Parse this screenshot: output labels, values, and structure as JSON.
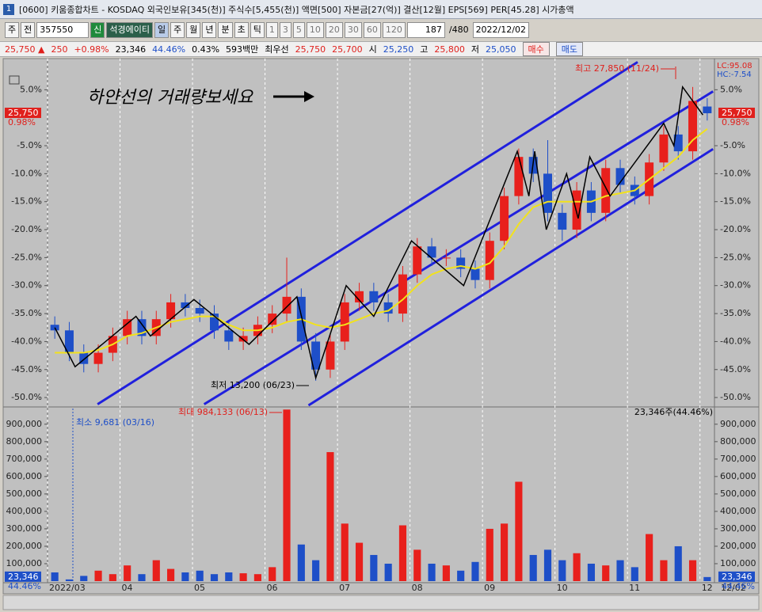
{
  "ui": {
    "title": "[0600] 키움종합차트 - KOSDAQ 외국인보유[345(천)] 주식수[5,455(천)] 액면[500] 자본금[27(억)] 결산[12월] EPS[569] PER[45.28] 시가총액",
    "toolbar": [
      "주",
      "전",
      "357550",
      "신",
      "석경에이티",
      "일",
      "주",
      "월",
      "년",
      "분",
      "초",
      "틱",
      "1",
      "3",
      "5",
      "10",
      "20",
      "30",
      "60",
      "120",
      "187",
      "/480",
      "2022/12/02"
    ],
    "info": [
      "25,750 ▲",
      "250",
      "+0.98%",
      "23,346",
      "44.46%",
      "0.43%",
      "593백만",
      "최우선",
      "25,750",
      "25,700",
      "시",
      "25,250",
      "고",
      "25,800",
      "저",
      "25,050",
      "매수",
      "매도"
    ]
  },
  "chart_data": {
    "type": "candlestick",
    "categories": [
      "2022/03",
      null,
      null,
      null,
      null,
      "04",
      null,
      null,
      null,
      null,
      "05",
      null,
      null,
      null,
      null,
      "06",
      null,
      null,
      null,
      null,
      "07",
      null,
      null,
      null,
      null,
      "08",
      null,
      null,
      null,
      null,
      "09",
      null,
      null,
      null,
      null,
      "10",
      null,
      null,
      null,
      null,
      "11",
      null,
      null,
      null,
      null,
      "12"
    ],
    "open": [
      -37,
      -38,
      -42,
      -44,
      -42,
      -39,
      -36,
      -39,
      -36,
      -33,
      -34,
      -35,
      -38,
      -40,
      -39,
      -37,
      -35,
      -32,
      -40,
      -45,
      -40,
      -33,
      -31,
      -33,
      -35,
      -28,
      -23,
      -25,
      -25,
      -27,
      -29,
      -22,
      -14,
      -7,
      -10,
      -17,
      -20,
      -13,
      -17,
      -9,
      -12,
      -14,
      -8,
      -3,
      -6,
      2
    ],
    "high": [
      -35.5,
      -36.5,
      -40.5,
      -40.5,
      -37.5,
      -34.5,
      -34.5,
      -34.5,
      -31.5,
      -31.5,
      -32.5,
      -33.5,
      -36.5,
      -37.5,
      -35.5,
      -33.5,
      -25,
      -30.5,
      -38.5,
      -38.5,
      -31.5,
      -29.5,
      -29.5,
      -31.5,
      -26.5,
      -21.5,
      -21.5,
      -23.5,
      -23.5,
      -25.5,
      -20.5,
      -12.5,
      -5.5,
      -5.5,
      -4,
      -15.5,
      -11.5,
      -11.5,
      -7.5,
      -7.5,
      -10.5,
      -6.5,
      -1.5,
      -1.5,
      5.5,
      3.5
    ],
    "low": [
      -39.5,
      -43.5,
      -45.5,
      -45.5,
      -43.5,
      -40.5,
      -40.5,
      -40.5,
      -37.5,
      -35.5,
      -36.5,
      -39.5,
      -41.5,
      -41.5,
      -40.5,
      -38.5,
      -36.5,
      -41.5,
      -47,
      -46.5,
      -41.5,
      -34.5,
      -34.5,
      -36.5,
      -36.5,
      -29.5,
      -26.5,
      -26.5,
      -28.5,
      -30.5,
      -30.5,
      -23.5,
      -15.5,
      -11.5,
      -18.5,
      -22,
      -21.5,
      -18.5,
      -18.5,
      -13.5,
      -15.5,
      -15.5,
      -9.5,
      -7.5,
      -7.5,
      -0.5
    ],
    "close": [
      -38,
      -42,
      -44,
      -42,
      -39,
      -36,
      -39,
      -36,
      -33,
      -34,
      -35,
      -38,
      -40,
      -39,
      -37,
      -35,
      -32,
      -40,
      -45,
      -40,
      -33,
      -31,
      -33,
      -35,
      -28,
      -23,
      -25,
      -25,
      -27,
      -29,
      -22,
      -14,
      -7,
      -10,
      -17,
      -20,
      -13,
      -17,
      -9,
      -12,
      -14,
      -8,
      -3,
      -6,
      3,
      0.8
    ],
    "up_color": "#e8201c",
    "down_color": "#1e4fc8",
    "ylim": [
      -51.4,
      10
    ],
    "yticks": [
      {
        "value": 5,
        "label": "5.0%"
      },
      {
        "value": -5,
        "label": "-5.0%"
      },
      {
        "value": -10,
        "label": "-10.0%"
      },
      {
        "value": -15,
        "label": "-15.0%"
      },
      {
        "value": -20,
        "label": "-20.0%"
      },
      {
        "value": -25,
        "label": "-25.0%"
      },
      {
        "value": -30,
        "label": "-30.0%"
      },
      {
        "value": -35,
        "label": "-35.0%"
      },
      {
        "value": -40,
        "label": "-40.0%"
      },
      {
        "value": -45,
        "label": "-45.0%"
      },
      {
        "value": -50,
        "label": "-50.0%"
      }
    ],
    "grid": true,
    "ma": {
      "color": "#f2e21a",
      "values": [
        -42,
        -42,
        -42,
        -41.5,
        -40.5,
        -39,
        -38.5,
        -37.5,
        -36.5,
        -36,
        -35.5,
        -35.5,
        -37,
        -38,
        -38,
        -37.5,
        -36.5,
        -36,
        -37,
        -37.5,
        -37,
        -36,
        -35,
        -34.5,
        -32.5,
        -30,
        -28,
        -27,
        -26.5,
        -27,
        -26,
        -23,
        -19,
        -16,
        -15,
        -15,
        -15,
        -15,
        -14,
        -13.5,
        -13,
        -11,
        -9,
        -7,
        -4,
        -2
      ]
    },
    "zigzag": {
      "color": "#000000",
      "x": [
        0,
        1.4,
        5.6,
        6.6,
        9.6,
        13.4,
        16.7,
        18,
        20.1,
        22,
        24.6,
        28.2,
        31.9,
        32.7,
        33.1,
        33.9,
        35.3,
        36.1,
        36.9,
        38.3,
        42,
        42.7,
        43.3,
        44.7
      ],
      "y": [
        -37.5,
        -44.5,
        -35.5,
        -39,
        -32.5,
        -40.5,
        -32,
        -46.5,
        -30,
        -35.5,
        -22,
        -30,
        -6,
        -14,
        -6,
        -20,
        -10,
        -18,
        -7,
        -14,
        -1,
        -5,
        5.5,
        0.5
      ]
    },
    "trend_lines": {
      "color": "#2020dd",
      "lines": [
        {
          "x": [
            2.95,
            40.2
          ],
          "y": [
            -51.2,
            9.95
          ]
        },
        {
          "x": [
            10.3,
            45.4
          ],
          "y": [
            -51.2,
            4.7
          ]
        },
        {
          "x": [
            17.5,
            45.4
          ],
          "y": [
            -51.4,
            -5.6
          ]
        }
      ]
    },
    "annotations": {
      "note": "하얀선의 거래량보세요",
      "high": "최고 27,850 (11/24)",
      "low": "최저 13,200 (06/23)",
      "vol_max": "최대 984,133 (06/13)",
      "vol_min": "최소 9,681 (03/16)",
      "vol_now": "23,346주(44.46%)",
      "lc": "LC:95.08",
      "hc": "HC:-7.54"
    },
    "last_label": {
      "price": "25,750",
      "rate": "0.98%",
      "volume": "23,346",
      "volume_rate": "44.46%"
    },
    "end_label": "12/02",
    "volume": {
      "values": [
        50000,
        9681,
        30000,
        60000,
        40000,
        90000,
        40000,
        120000,
        70000,
        50000,
        60000,
        40000,
        50000,
        45000,
        40000,
        80000,
        984133,
        210000,
        120000,
        740000,
        330000,
        220000,
        150000,
        100000,
        320000,
        180000,
        100000,
        90000,
        60000,
        110000,
        300000,
        330000,
        570000,
        150000,
        180000,
        120000,
        160000,
        100000,
        90000,
        120000,
        80000,
        270000,
        120000,
        200000,
        120000,
        23346
      ],
      "ylim": [
        0,
        990000
      ],
      "yticks": [
        {
          "value": 100000,
          "label": "100,000"
        },
        {
          "value": 200000,
          "label": "200,000"
        },
        {
          "value": 300000,
          "label": "300,000"
        },
        {
          "value": 400000,
          "label": "400,000"
        },
        {
          "value": 500000,
          "label": "500,000"
        },
        {
          "value": 600000,
          "label": "600,000"
        },
        {
          "value": 700000,
          "label": "700,000"
        },
        {
          "value": 800000,
          "label": "800,000"
        },
        {
          "value": 900000,
          "label": "900,000"
        }
      ]
    }
  }
}
